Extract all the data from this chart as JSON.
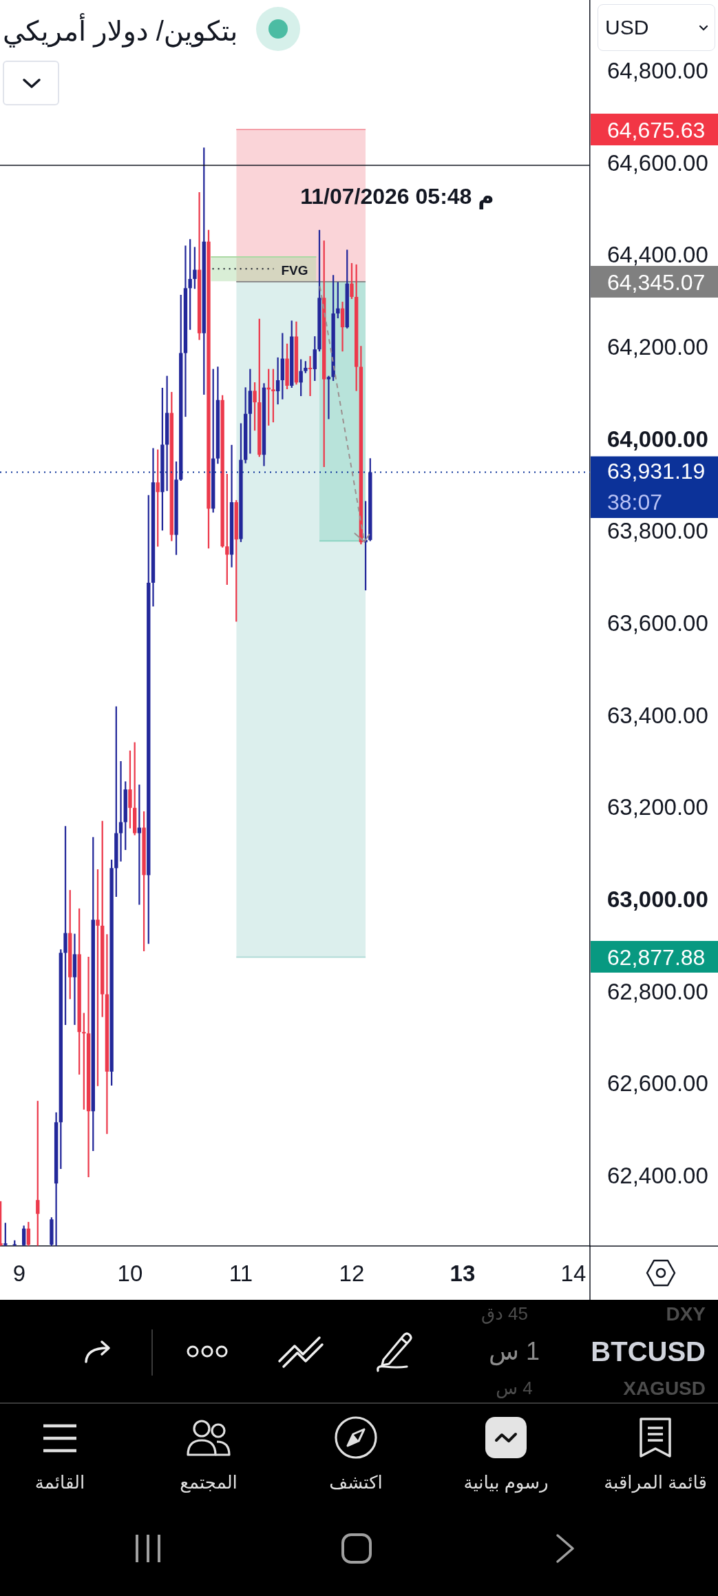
{
  "chart_data": {
    "type": "candlestick",
    "title": "بتكوين/ دولار أمريكي",
    "x": [
      "2026-07-08T20:00",
      "2026-07-08T21:00",
      "2026-07-08T23:00",
      "2026-07-09T01:00",
      "2026-07-09T02:00",
      "2026-07-09T04:00",
      "2026-07-09T07:00",
      "2026-07-09T08:00",
      "2026-07-09T09:00",
      "2026-07-09T10:00",
      "2026-07-09T11:00",
      "2026-07-09T12:00",
      "2026-07-09T13:00",
      "2026-07-09T14:00",
      "2026-07-09T15:00",
      "2026-07-09T16:00",
      "2026-07-09T17:00",
      "2026-07-09T18:00",
      "2026-07-09T19:00",
      "2026-07-09T20:00",
      "2026-07-09T21:00",
      "2026-07-09T22:00",
      "2026-07-09T23:00",
      "2026-07-10T00:00",
      "2026-07-10T01:00",
      "2026-07-10T02:00",
      "2026-07-10T03:00",
      "2026-07-10T04:00",
      "2026-07-10T05:00",
      "2026-07-10T06:00",
      "2026-07-10T07:00",
      "2026-07-10T08:00",
      "2026-07-10T09:00",
      "2026-07-10T10:00",
      "2026-07-10T11:00",
      "2026-07-10T12:00",
      "2026-07-10T13:00",
      "2026-07-10T14:00",
      "2026-07-10T15:00",
      "2026-07-10T16:00",
      "2026-07-10T17:00",
      "2026-07-10T18:00",
      "2026-07-10T19:00",
      "2026-07-10T20:00",
      "2026-07-10T21:00",
      "2026-07-10T22:00",
      "2026-07-10T23:00",
      "2026-07-11T00:00",
      "2026-07-11T01:00",
      "2026-07-11T02:00",
      "2026-07-11T03:00",
      "2026-07-11T04:00",
      "2026-07-11T05:00",
      "2026-07-11T06:00",
      "2026-07-11T07:00",
      "2026-07-11T08:00",
      "2026-07-11T09:00",
      "2026-07-11T10:00",
      "2026-07-11T11:00",
      "2026-07-11T12:00",
      "2026-07-11T13:00",
      "2026-07-11T14:00",
      "2026-07-11T15:00",
      "2026-07-11T16:00",
      "2026-07-11T17:00",
      "2026-07-11T18:00",
      "2026-07-11T19:00",
      "2026-07-11T20:00",
      "2026-07-11T21:00",
      "2026-07-11T22:00",
      "2026-07-11T23:00",
      "2026-07-12T00:00",
      "2026-07-12T01:00",
      "2026-07-12T02:00",
      "2026-07-12T03:00",
      "2026-07-12T04:00"
    ],
    "ohlc": [
      [
        62256,
        62347,
        62251,
        62252
      ],
      [
        62252,
        62300,
        62251,
        62256
      ],
      [
        62252,
        62262,
        62251,
        62254
      ],
      [
        62252,
        62294,
        62251,
        62288
      ],
      [
        62288,
        62302,
        62251,
        62253
      ],
      [
        62350,
        62565,
        62251,
        62320
      ],
      [
        62253,
        62312,
        62251,
        62308
      ],
      [
        62386,
        62540,
        62251,
        62519
      ],
      [
        62519,
        62894,
        62418,
        62887
      ],
      [
        62887,
        63162,
        62731,
        62930
      ],
      [
        62930,
        63023,
        62787,
        62834
      ],
      [
        62834,
        62928,
        62731,
        62884
      ],
      [
        62884,
        62983,
        62623,
        62715
      ],
      [
        62715,
        62756,
        62547,
        62712
      ],
      [
        62712,
        62878,
        62400,
        62543
      ],
      [
        62543,
        63138,
        62457,
        62959
      ],
      [
        62959,
        63068,
        62598,
        62946
      ],
      [
        62946,
        63173,
        62748,
        62797
      ],
      [
        62797,
        62927,
        62494,
        62629
      ],
      [
        62629,
        63089,
        62599,
        63071
      ],
      [
        63071,
        63422,
        63009,
        63147
      ],
      [
        63147,
        63303,
        63086,
        63171
      ],
      [
        63171,
        63259,
        63111,
        63242
      ],
      [
        63242,
        63326,
        63158,
        63202
      ],
      [
        63202,
        63344,
        63143,
        63147
      ],
      [
        63147,
        63252,
        62992,
        63159
      ],
      [
        63159,
        63194,
        62891,
        63056
      ],
      [
        63056,
        63881,
        62907,
        63691
      ],
      [
        63691,
        63983,
        63640,
        63909
      ],
      [
        63909,
        63980,
        63770,
        63888
      ],
      [
        63888,
        64114,
        63805,
        63991
      ],
      [
        63991,
        64140,
        63891,
        64060
      ],
      [
        64060,
        64105,
        63782,
        63795
      ],
      [
        63795,
        63954,
        63752,
        63915
      ],
      [
        63915,
        64316,
        63913,
        64190
      ],
      [
        64190,
        64423,
        64052,
        64331
      ],
      [
        64331,
        64437,
        64241,
        64351
      ],
      [
        64351,
        64420,
        64330,
        64371
      ],
      [
        64371,
        64539,
        64219,
        64233
      ],
      [
        64233,
        64636,
        64100,
        64432
      ],
      [
        64432,
        64457,
        63766,
        63852
      ],
      [
        63852,
        64155,
        63844,
        63961
      ],
      [
        63961,
        64160,
        63950,
        64088
      ],
      [
        64088,
        64098,
        63768,
        63770
      ],
      [
        63770,
        63927,
        63687,
        63752
      ],
      [
        63752,
        63990,
        63725,
        63866
      ],
      [
        63866,
        63870,
        63607,
        63785
      ],
      [
        63786,
        64037,
        63780,
        63958
      ],
      [
        63958,
        64115,
        63951,
        64058
      ],
      [
        64058,
        64155,
        63972,
        64108
      ],
      [
        64108,
        64126,
        64022,
        64083
      ],
      [
        64083,
        64264,
        63965,
        63969
      ],
      [
        63969,
        64124,
        63945,
        64115
      ],
      [
        64115,
        64155,
        64033,
        64111
      ],
      [
        64111,
        64155,
        64040,
        64107
      ],
      [
        64107,
        64180,
        64079,
        64131
      ],
      [
        64131,
        64233,
        64090,
        64178
      ],
      [
        64178,
        64210,
        64112,
        64119
      ],
      [
        64119,
        64260,
        64115,
        64226
      ],
      [
        64226,
        64258,
        64122,
        64126
      ],
      [
        64126,
        64176,
        64097,
        64151
      ],
      [
        64151,
        64172,
        64147,
        64158
      ],
      [
        64158,
        64183,
        64097,
        64155
      ],
      [
        64155,
        64226,
        64130,
        64198
      ],
      [
        64198,
        64457,
        64194,
        64310
      ],
      [
        64310,
        64434,
        63943,
        64133
      ],
      [
        64133,
        64140,
        64047,
        64138
      ],
      [
        64138,
        64359,
        64130,
        64276
      ],
      [
        64276,
        64344,
        64266,
        64287
      ],
      [
        64287,
        64301,
        64194,
        64246
      ],
      [
        64246,
        64414,
        64244,
        64341
      ],
      [
        64341,
        64385,
        64308,
        64312
      ],
      [
        64312,
        64382,
        64108,
        64160
      ],
      [
        64160,
        64205,
        63775,
        63779
      ],
      [
        63779,
        63868,
        63675,
        63784
      ],
      [
        63784,
        63961,
        63782,
        63931.19
      ]
    ],
    "colors": [
      "#ec3a4c",
      "#23289a",
      "#23289a",
      "#23289a",
      "#ec3a4c",
      "#ec3a4c",
      "#23289a",
      "#23289a",
      "#23289a",
      "#23289a",
      "#ec3a4c",
      "#23289a",
      "#ec3a4c",
      "#ec3a4c",
      "#ec3a4c",
      "#23289a",
      "#ec3a4c",
      "#ec3a4c",
      "#ec3a4c",
      "#23289a",
      "#23289a",
      "#23289a",
      "#23289a",
      "#ec3a4c",
      "#ec3a4c",
      "#23289a",
      "#ec3a4c",
      "#23289a",
      "#23289a",
      "#ec3a4c",
      "#23289a",
      "#23289a",
      "#ec3a4c",
      "#23289a",
      "#23289a",
      "#23289a",
      "#23289a",
      "#23289a",
      "#ec3a4c",
      "#23289a",
      "#ec3a4c",
      "#23289a",
      "#23289a",
      "#ec3a4c",
      "#ec3a4c",
      "#23289a",
      "#ec3a4c",
      "#23289a",
      "#23289a",
      "#23289a",
      "#ec3a4c",
      "#ec3a4c",
      "#23289a",
      "#ec3a4c",
      "#ec3a4c",
      "#23289a",
      "#23289a",
      "#ec3a4c",
      "#23289a",
      "#ec3a4c",
      "#23289a",
      "#23289a",
      "#ec3a4c",
      "#23289a",
      "#23289a",
      "#ec3a4c",
      "#23289a",
      "#23289a",
      "#23289a",
      "#ec3a4c",
      "#23289a",
      "#ec3a4c",
      "#ec3a4c",
      "#ec3a4c",
      "#23289a",
      "#23289a"
    ],
    "series": [
      {
        "type": "line",
        "x": [
          "2026-07-10T23:00",
          "2026-07-12T03:00"
        ],
        "values": [
          64675.63,
          64675.63
        ],
        "lower": [
          64345.07,
          64345.07
        ],
        "upper": [
          64675.63,
          64675.63
        ],
        "color": "#f49fa8"
      },
      {
        "type": "line",
        "x": [
          "2026-07-10T23:00",
          "2026-07-12T03:00"
        ],
        "values": [
          62877.88,
          62877.88
        ],
        "lower": [
          62877.88,
          62877.88
        ],
        "upper": [
          64345.07,
          64345.07
        ],
        "color": "#b1dbd7"
      },
      {
        "type": "line",
        "x": [
          "2026-07-11T17:00",
          "2026-07-12T03:00"
        ],
        "values": [
          63782,
          63782
        ],
        "lower": [
          63782,
          63782
        ],
        "upper": [
          64345.07,
          64345.07
        ],
        "color": "#8cd4c3"
      },
      {
        "type": "line",
        "x": [
          "2026-07-10T17:30",
          "2026-07-11T16:20"
        ],
        "values": [
          64399,
          64399
        ],
        "lower": [
          64346,
          64346
        ],
        "upper": [
          64399,
          64399
        ],
        "color": "#abd9a4"
      },
      {
        "type": "line",
        "x": [
          "2026-07-10T23:00",
          "2026-07-12T03:00"
        ],
        "values": [
          64345.07,
          64345.07
        ],
        "color": "#8c8c8c"
      },
      {
        "type": "line",
        "x": [
          "2026-07-10T17:50",
          "2026-07-11T07:05"
        ],
        "values": [
          64373,
          64373
        ],
        "color": "#131722",
        "line_style": "dotted"
      }
    ],
    "xlim": [
      "2026-07-08T19:50",
      "2026-07-14T03:35"
    ],
    "xticks": [
      {
        "value": "2026-07-09",
        "label": "9"
      },
      {
        "value": "2026-07-10",
        "label": "10"
      },
      {
        "value": "2026-07-11",
        "label": "11"
      },
      {
        "value": "2026-07-12",
        "label": "12"
      },
      {
        "value": "2026-07-13",
        "label": "13"
      },
      {
        "value": "2026-07-14",
        "label": "14"
      }
    ],
    "ylim": [
      62250,
      64957
    ],
    "yticks": [
      {
        "value": 62400,
        "label": "62,400.00"
      },
      {
        "value": 62600,
        "label": "62,600.00"
      },
      {
        "value": 62800,
        "label": "62,800.00"
      },
      {
        "value": 63000,
        "label": "63,000.00"
      },
      {
        "value": 63200,
        "label": "63,200.00"
      },
      {
        "value": 63400,
        "label": "63,400.00"
      },
      {
        "value": 63600,
        "label": "63,600.00"
      },
      {
        "value": 63800,
        "label": "63,800.00"
      },
      {
        "value": 64000,
        "label": "64,000.00"
      },
      {
        "value": 64200,
        "label": "64,200.00"
      },
      {
        "value": 64400,
        "label": "64,400.00"
      },
      {
        "value": 64600,
        "label": "64,600.00"
      },
      {
        "value": 64800,
        "label": "64,800.00"
      }
    ],
    "ref_lines": [
      {
        "axis": "y",
        "value": 64598,
        "color": "#131722",
        "line_style": "solid"
      },
      {
        "axis": "y",
        "value": 63931.19,
        "label": "63,931.19",
        "color": "#0c3299",
        "line_style": "dotted"
      }
    ],
    "annotations": [
      "USD",
      "64,675.63",
      "11/07/2026 05:48 م",
      "FVG",
      "64,345.07",
      "38:07",
      "62,877.88",
      "45 دق",
      "DXY",
      "1 س",
      "BTCUSD",
      "4 س",
      "XAGUSD",
      "القائمة",
      "المجتمع",
      "اكتشف",
      "رسوم بيانية",
      "قائمة المراقبة"
    ]
  }
}
